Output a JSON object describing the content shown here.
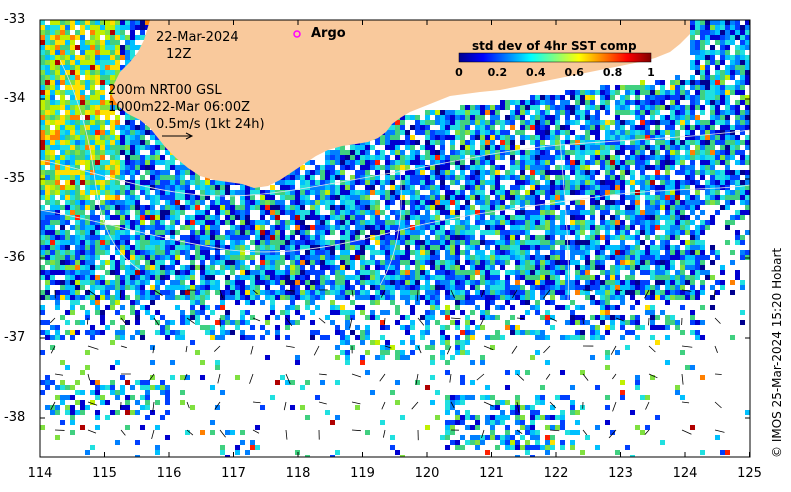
{
  "map": {
    "date": "22-Mar-2024",
    "time": "12Z",
    "current_label_line1": "200m  NRT00 GSL",
    "current_label_line2": "1000m22-Mar 06:00Z",
    "vector_scale_label": "0.5m/s (1kt 24h)",
    "argo_legend": "Argo",
    "credit": "© IMOS 25-Mar-2024 15:20 Hobart",
    "y_ticks": [
      "-33",
      "-34",
      "-35",
      "-36",
      "-37",
      "-38"
    ],
    "x_ticks": [
      "114",
      "115",
      "116",
      "117",
      "118",
      "119",
      "120",
      "121",
      "122",
      "123",
      "124",
      "125"
    ],
    "colorbar": {
      "title": "std dev of 4hr SST comp",
      "ticks": [
        "0",
        "0.2",
        "0.4",
        "0.6",
        "0.8",
        "1"
      ]
    },
    "colors": {
      "land": "#f9c99c",
      "no_data": "#ffffff",
      "argo_marker": "#ff00ff",
      "contour": "#e6e6e6"
    }
  }
}
